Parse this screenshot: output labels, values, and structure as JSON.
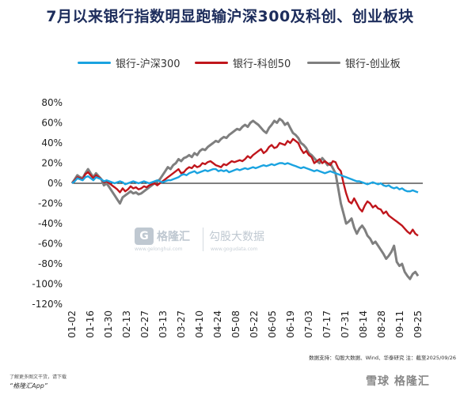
{
  "chart_data": {
    "type": "line",
    "title": "7月以来银行指数明显跑输沪深300及科创、创业板块",
    "x_ticks": [
      "01-02",
      "01-16",
      "01-30",
      "02-13",
      "02-27",
      "03-13",
      "03-27",
      "04-10",
      "04-24",
      "05-08",
      "05-22",
      "06-05",
      "06-19",
      "07-03",
      "07-17",
      "07-31",
      "08-14",
      "08-28",
      "09-11",
      "09-25"
    ],
    "ylim": [
      -120,
      80
    ],
    "y_ticks": [
      "80%",
      "60%",
      "40%",
      "20%",
      "0%",
      "-20%",
      "-40%",
      "-60%",
      "-80%",
      "-100%",
      "-120%"
    ],
    "y_tick_values": [
      80,
      60,
      40,
      20,
      0,
      -20,
      -40,
      -60,
      -80,
      -100,
      -120
    ],
    "legend_position": "top",
    "series": [
      {
        "name": "银行-沪深300",
        "color": "#1aa3e0",
        "values": [
          0,
          2,
          5,
          4,
          3,
          6,
          7,
          5,
          3,
          6,
          5,
          4,
          2,
          3,
          2,
          1,
          0,
          1,
          2,
          1,
          -1,
          0,
          1,
          2,
          1,
          0,
          1,
          2,
          1,
          0,
          1,
          2,
          3,
          2,
          1,
          2,
          3,
          3,
          4,
          5,
          6,
          8,
          9,
          8,
          10,
          11,
          12,
          10,
          11,
          12,
          13,
          12,
          13,
          14,
          14,
          12,
          13,
          12,
          13,
          11,
          12,
          13,
          14,
          13,
          14,
          15,
          14,
          15,
          16,
          15,
          16,
          17,
          18,
          17,
          18,
          19,
          18,
          19,
          20,
          20,
          19,
          20,
          19,
          18,
          17,
          16,
          15,
          16,
          15,
          14,
          13,
          12,
          13,
          12,
          11,
          10,
          11,
          12,
          11,
          10,
          9,
          8,
          7,
          6,
          5,
          4,
          3,
          2,
          2,
          1,
          0,
          -1,
          0,
          1,
          0,
          -1,
          0,
          -2,
          -3,
          -2,
          -4,
          -5,
          -4,
          -6,
          -5,
          -7,
          -8,
          -8,
          -7,
          -8,
          -9
        ]
      },
      {
        "name": "银行-科创50",
        "color": "#c0161c",
        "values": [
          0,
          3,
          6,
          5,
          4,
          9,
          11,
          8,
          5,
          8,
          6,
          4,
          1,
          2,
          0,
          -2,
          -4,
          -6,
          -9,
          -5,
          -8,
          -6,
          -3,
          -5,
          -4,
          -6,
          -5,
          -3,
          -4,
          -2,
          -1,
          0,
          -2,
          0,
          2,
          4,
          6,
          8,
          10,
          12,
          14,
          10,
          11,
          14,
          16,
          15,
          18,
          16,
          17,
          20,
          19,
          21,
          22,
          20,
          18,
          17,
          16,
          19,
          18,
          20,
          22,
          21,
          22,
          23,
          22,
          24,
          27,
          25,
          28,
          30,
          32,
          34,
          30,
          32,
          36,
          38,
          35,
          36,
          40,
          39,
          38,
          42,
          40,
          44,
          42,
          40,
          34,
          30,
          32,
          28,
          26,
          20,
          22,
          24,
          20,
          22,
          20,
          18,
          22,
          21,
          15,
          12,
          0,
          -10,
          -18,
          -20,
          -15,
          -20,
          -25,
          -28,
          -22,
          -18,
          -20,
          -24,
          -22,
          -25,
          -26,
          -30,
          -28,
          -32,
          -34,
          -36,
          -38,
          -40,
          -42,
          -45,
          -48,
          -50,
          -46,
          -50,
          -52
        ]
      },
      {
        "name": "银行-创业板",
        "color": "#7f7f7f",
        "values": [
          0,
          4,
          8,
          6,
          5,
          10,
          14,
          10,
          6,
          10,
          7,
          4,
          -2,
          0,
          -4,
          -8,
          -12,
          -16,
          -20,
          -14,
          -12,
          -10,
          -8,
          -10,
          -9,
          -11,
          -10,
          -8,
          -6,
          -4,
          -2,
          0,
          2,
          4,
          8,
          12,
          16,
          14,
          18,
          20,
          24,
          22,
          25,
          26,
          28,
          26,
          30,
          28,
          32,
          34,
          33,
          36,
          38,
          40,
          42,
          41,
          44,
          46,
          45,
          48,
          50,
          52,
          54,
          53,
          56,
          58,
          56,
          60,
          62,
          60,
          58,
          55,
          52,
          50,
          55,
          58,
          62,
          60,
          64,
          62,
          58,
          60,
          55,
          50,
          48,
          45,
          40,
          38,
          35,
          30,
          28,
          25,
          22,
          20,
          25,
          22,
          18,
          20,
          15,
          10,
          -5,
          -20,
          -30,
          -40,
          -38,
          -35,
          -44,
          -50,
          -45,
          -42,
          -46,
          -52,
          -55,
          -60,
          -58,
          -62,
          -66,
          -70,
          -75,
          -72,
          -68,
          -62,
          -78,
          -82,
          -80,
          -88,
          -92,
          -95,
          -90,
          -88,
          -92
        ]
      }
    ]
  },
  "watermark": {
    "badge": "G",
    "brand": "格隆汇",
    "site1": "www.gelonghui.com",
    "brand2": "勾股大数据",
    "site2": "www.gogudata.com"
  },
  "footer": {
    "source": "数据支持：勾股大数据、Wind、华泰研究  注：截至2025/09/26",
    "promo_line1": "了解更多图文干货，请下载",
    "promo_line2": "“格隆汇App”",
    "bottom_logo": "雪球 格隆汇"
  }
}
